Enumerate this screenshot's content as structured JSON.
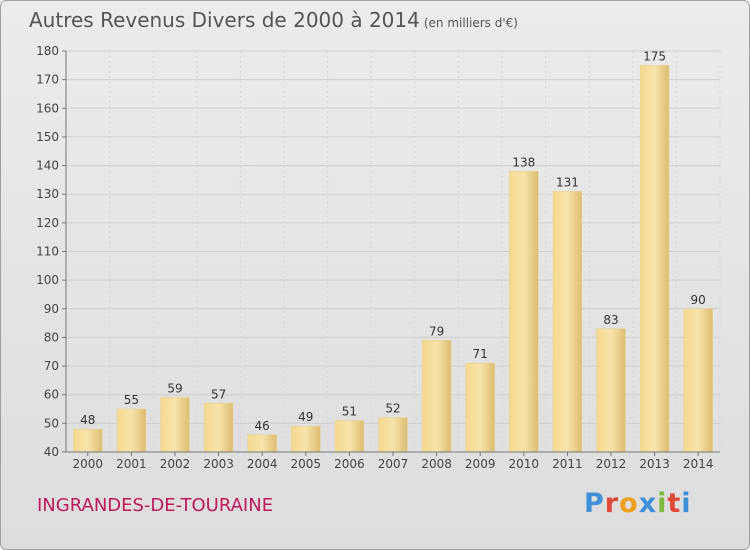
{
  "header": {
    "title": "Autres Revenus Divers de 2000 à 2014",
    "unit": "(en milliers d'€)"
  },
  "footer": {
    "city": "INGRANDES-DE-TOURAINE",
    "logo": "Proxiti"
  },
  "colors": {
    "city": "#c2185b",
    "bar_light": "#f7e2a6",
    "bar_dark": "#d9bb6f",
    "logo_letters": [
      "#3f8ed8",
      "#e2483a",
      "#f0a020",
      "#3f8ed8",
      "#7cbc3c",
      "#e2483a",
      "#3f8ed8"
    ]
  },
  "chart_data": {
    "type": "bar",
    "title": "Autres Revenus Divers de 2000 à 2014",
    "categories": [
      "2000",
      "2001",
      "2002",
      "2003",
      "2004",
      "2005",
      "2006",
      "2007",
      "2008",
      "2009",
      "2010",
      "2011",
      "2012",
      "2013",
      "2014"
    ],
    "values": [
      48,
      55,
      59,
      57,
      46,
      49,
      51,
      52,
      79,
      71,
      138,
      131,
      83,
      175,
      90
    ],
    "ylim": [
      40,
      180
    ],
    "yticks": [
      40,
      50,
      60,
      70,
      80,
      90,
      100,
      110,
      120,
      130,
      140,
      150,
      160,
      170,
      180
    ],
    "grid": true
  }
}
